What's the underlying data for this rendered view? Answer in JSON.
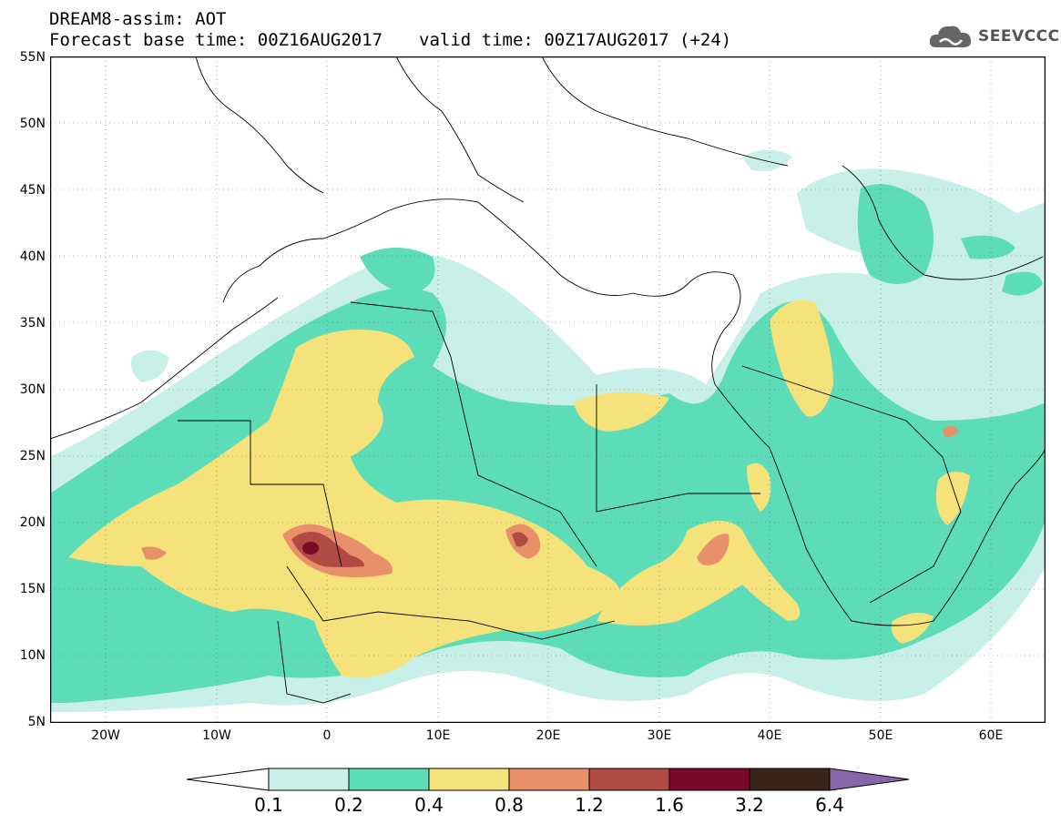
{
  "title": {
    "line1": "DREAM8-assim: AOT",
    "base_time": "Forecast base time: 00Z16AUG2017",
    "valid_time": "valid time: 00Z17AUG2017 (+24)"
  },
  "logo": {
    "text": "SEEVCCC",
    "icon": "cloud-logo-icon"
  },
  "axes": {
    "lat_labels": [
      "55N",
      "50N",
      "45N",
      "40N",
      "35N",
      "30N",
      "25N",
      "20N",
      "15N",
      "10N",
      "5N"
    ],
    "lon_labels": [
      "20W",
      "10W",
      "0",
      "10E",
      "20E",
      "30E",
      "40E",
      "50E",
      "60E"
    ]
  },
  "colorbar": {
    "labels": [
      "0.1",
      "0.2",
      "0.4",
      "0.8",
      "1.2",
      "1.6",
      "3.2",
      "6.4"
    ],
    "colors": [
      "#ffffff",
      "#c8f0e8",
      "#5ddcb8",
      "#f5e27a",
      "#e8906a",
      "#b04a42",
      "#7a0a2a",
      "#3a2418",
      "#8866aa"
    ]
  },
  "colors": {
    "level1": "#c8f0e8",
    "level2": "#5ddcb8",
    "level3": "#f5e27a",
    "level4": "#e8906a",
    "level5": "#b04a42",
    "level6": "#7a0a2a"
  }
}
